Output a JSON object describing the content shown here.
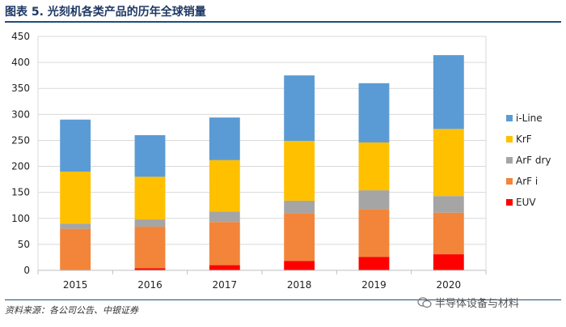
{
  "figure": {
    "title": "图表 5. 光刻机各类产品的历年全球销量",
    "source": "资料来源：各公司公告、中银证券",
    "watermark": "半导体设备与材料"
  },
  "chart_data": {
    "type": "bar",
    "stacked": true,
    "title": "",
    "xlabel": "",
    "ylabel": "",
    "categories": [
      "2015",
      "2016",
      "2017",
      "2018",
      "2019",
      "2020"
    ],
    "ylim": [
      0,
      450
    ],
    "yticks": [
      0,
      50,
      100,
      150,
      200,
      250,
      300,
      350,
      400,
      450
    ],
    "grid": true,
    "legend_position": "right",
    "series": [
      {
        "name": "EUV",
        "color": "#ff0000",
        "values": [
          0,
          4,
          10,
          18,
          26,
          31
        ]
      },
      {
        "name": "ArF i",
        "color": "#f2853a",
        "values": [
          80,
          80,
          83,
          92,
          92,
          80
        ]
      },
      {
        "name": "ArF dry",
        "color": "#a5a5a5",
        "values": [
          10,
          14,
          20,
          24,
          36,
          32
        ]
      },
      {
        "name": "KrF",
        "color": "#ffc000",
        "values": [
          100,
          82,
          99,
          115,
          92,
          129
        ]
      },
      {
        "name": "i-Line",
        "color": "#5b9bd5",
        "values": [
          100,
          80,
          82,
          126,
          114,
          142
        ]
      }
    ]
  }
}
